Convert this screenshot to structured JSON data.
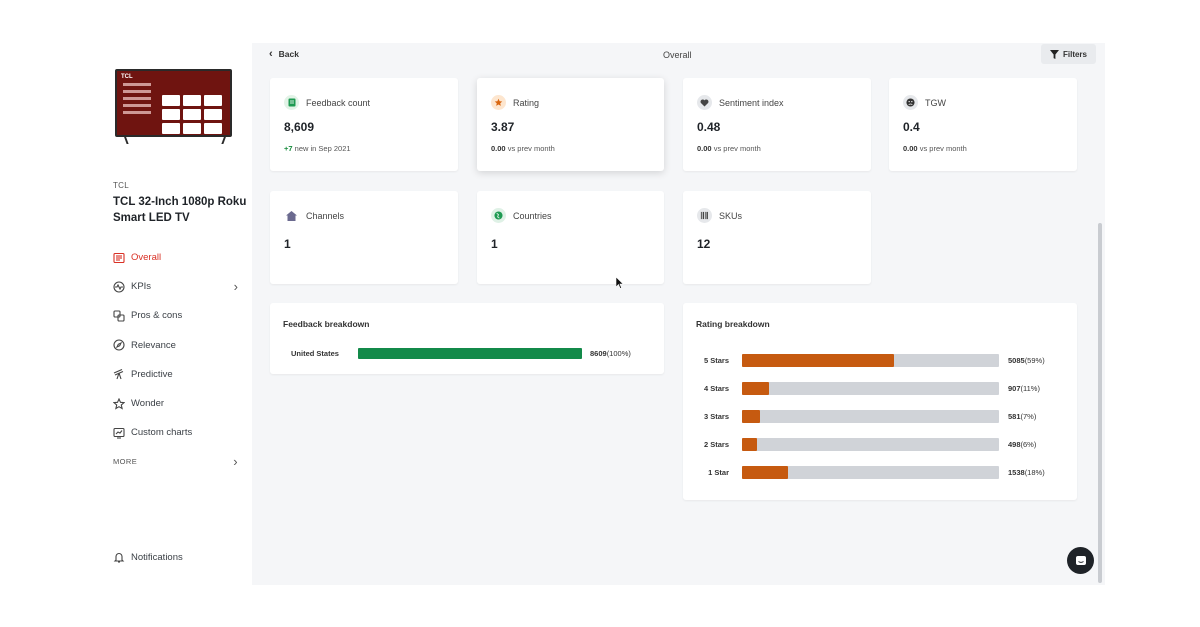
{
  "product": {
    "brand": "TCL",
    "name": "TCL 32-Inch 1080p Roku Smart LED TV",
    "tv_logo": "TCL"
  },
  "sidebar": {
    "items": [
      {
        "label": "Overall",
        "icon": "newspaper-icon",
        "active": true
      },
      {
        "label": "KPIs",
        "icon": "pulse-icon",
        "chevron": true
      },
      {
        "label": "Pros & cons",
        "icon": "thumbs-icon"
      },
      {
        "label": "Relevance",
        "icon": "compass-icon"
      },
      {
        "label": "Predictive",
        "icon": "telescope-icon"
      },
      {
        "label": "Wonder",
        "icon": "star-icon"
      },
      {
        "label": "Custom charts",
        "icon": "chart-icon"
      }
    ],
    "more_label": "MORE",
    "notifications_label": "Notifications"
  },
  "header": {
    "back_label": "Back",
    "title": "Overall",
    "filters_label": "Filters"
  },
  "kpis": {
    "feedback": {
      "label": "Feedback count",
      "value": "8,609",
      "delta": "+7",
      "sub": "new in Sep 2021"
    },
    "rating": {
      "label": "Rating",
      "value": "3.87",
      "delta": "0.00",
      "sub": "vs prev month"
    },
    "sentiment": {
      "label": "Sentiment index",
      "value": "0.48",
      "delta": "0.00",
      "sub": "vs prev month"
    },
    "tgw": {
      "label": "TGW",
      "value": "0.4",
      "delta": "0.00",
      "sub": "vs prev month"
    },
    "channels": {
      "label": "Channels",
      "value": "1"
    },
    "countries": {
      "label": "Countries",
      "value": "1"
    },
    "skus": {
      "label": "SKUs",
      "value": "12"
    }
  },
  "feedback_breakdown": {
    "title": "Feedback breakdown",
    "rows": [
      {
        "label": "United States",
        "count": "8609",
        "pct": "(100%)",
        "fraction": 1.0
      }
    ]
  },
  "rating_breakdown": {
    "title": "Rating breakdown",
    "rows": [
      {
        "label": "5 Stars",
        "count": "5085",
        "pct": "(59%)",
        "fraction": 0.59
      },
      {
        "label": "4 Stars",
        "count": "907",
        "pct": "(11%)",
        "fraction": 0.105
      },
      {
        "label": "3 Stars",
        "count": "581",
        "pct": "(7%)",
        "fraction": 0.07
      },
      {
        "label": "2 Stars",
        "count": "498",
        "pct": "(6%)",
        "fraction": 0.058
      },
      {
        "label": "1 Star",
        "count": "1538",
        "pct": "(18%)",
        "fraction": 0.18
      }
    ]
  },
  "colors": {
    "accent": "#d93025",
    "positive": "#138a3a",
    "feedback_bar": "#138a4a",
    "rating_bar": "#c65a10"
  }
}
